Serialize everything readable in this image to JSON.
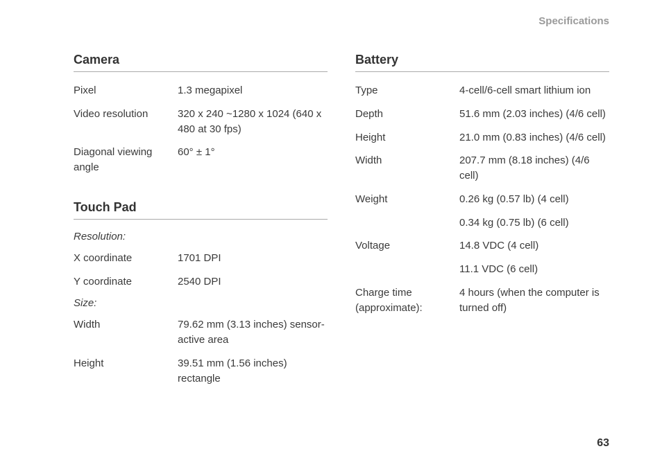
{
  "header": {
    "title": "Specifications"
  },
  "pageNumber": "63",
  "left": {
    "camera": {
      "title": "Camera",
      "rows": [
        {
          "label": "Pixel",
          "value": "1.3 megapixel"
        },
        {
          "label": "Video resolution",
          "value": "320 x 240 ~1280 x 1024 (640 x 480 at 30 fps)"
        },
        {
          "label": "Diagonal viewing angle",
          "value": "60° ± 1°"
        }
      ]
    },
    "touchpad": {
      "title": "Touch Pad",
      "sub1": "Resolution:",
      "rows1": [
        {
          "label": "X coordinate",
          "value": "1701 DPI"
        },
        {
          "label": "Y coordinate",
          "value": "2540 DPI"
        }
      ],
      "sub2": "Size:",
      "rows2": [
        {
          "label": "Width",
          "value": "79.62 mm (3.13 inches) sensor-active area"
        },
        {
          "label": "Height",
          "value": "39.51 mm (1.56 inches) rectangle"
        }
      ]
    }
  },
  "right": {
    "battery": {
      "title": "Battery",
      "rows": [
        {
          "label": "Type",
          "value": "4-cell/6-cell smart lithium ion"
        },
        {
          "label": "Depth",
          "value": "51.6 mm (2.03 inches) (4/6 cell)"
        },
        {
          "label": "Height",
          "value": "21.0 mm (0.83 inches) (4/6 cell)"
        },
        {
          "label": "Width",
          "value": "207.7 mm (8.18 inches) (4/6 cell)"
        },
        {
          "label": "Weight",
          "value": "0.26 kg (0.57 lb) (4 cell)"
        },
        {
          "label": "",
          "value": "0.34 kg (0.75 lb) (6 cell)"
        },
        {
          "label": "Voltage",
          "value": "14.8 VDC (4 cell)"
        },
        {
          "label": "",
          "value": "11.1 VDC (6 cell)"
        },
        {
          "label": "Charge time (approximate):",
          "value": "4 hours (when the computer is turned off)"
        }
      ]
    }
  }
}
